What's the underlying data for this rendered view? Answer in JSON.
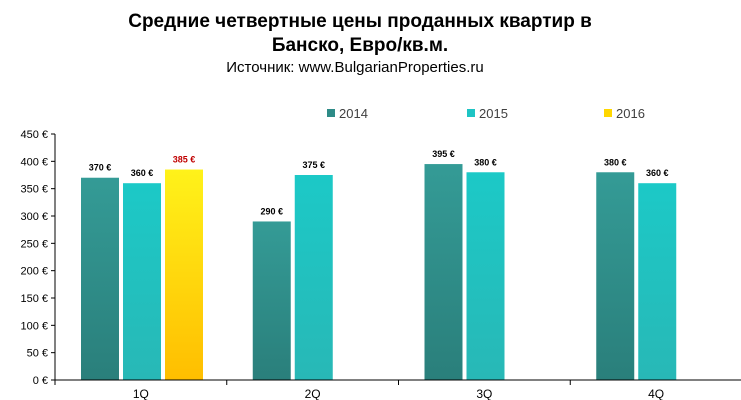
{
  "chart_data": {
    "type": "bar",
    "title_line1": "Средние четвертные цены проданных квартир в",
    "title_line2": "Банско, Евро/кв.м.",
    "subtitle": "Источник: www.BulgarianProperties.ru",
    "categories": [
      "1Q",
      "2Q",
      "3Q",
      "4Q"
    ],
    "series": [
      {
        "name": "2014",
        "color": "#2e8b87",
        "values": [
          370,
          290,
          395,
          380
        ]
      },
      {
        "name": "2015",
        "color": "#1ec4c4",
        "values": [
          360,
          375,
          380,
          360
        ]
      },
      {
        "name": "2016",
        "color": "#ffd700",
        "values": [
          385,
          null,
          null,
          null
        ]
      }
    ],
    "value_labels": [
      [
        "370 €",
        "290 €",
        "395 €",
        "380 €"
      ],
      [
        "360 €",
        "375 €",
        "380 €",
        "360 €"
      ],
      [
        "385 €",
        null,
        null,
        null
      ]
    ],
    "value_label_colors": {
      "2014": "#000000",
      "2015": "#000000",
      "2016": "#c00000"
    },
    "yticks": [
      0,
      50,
      100,
      150,
      200,
      250,
      300,
      350,
      400,
      450
    ],
    "ytick_labels": [
      "0 €",
      "50 €",
      "100 €",
      "150 €",
      "200 €",
      "250 €",
      "300 €",
      "350 €",
      "400 €",
      "450 €"
    ],
    "ylim": [
      0,
      450
    ],
    "grid": false,
    "legend_position": "top-center"
  }
}
